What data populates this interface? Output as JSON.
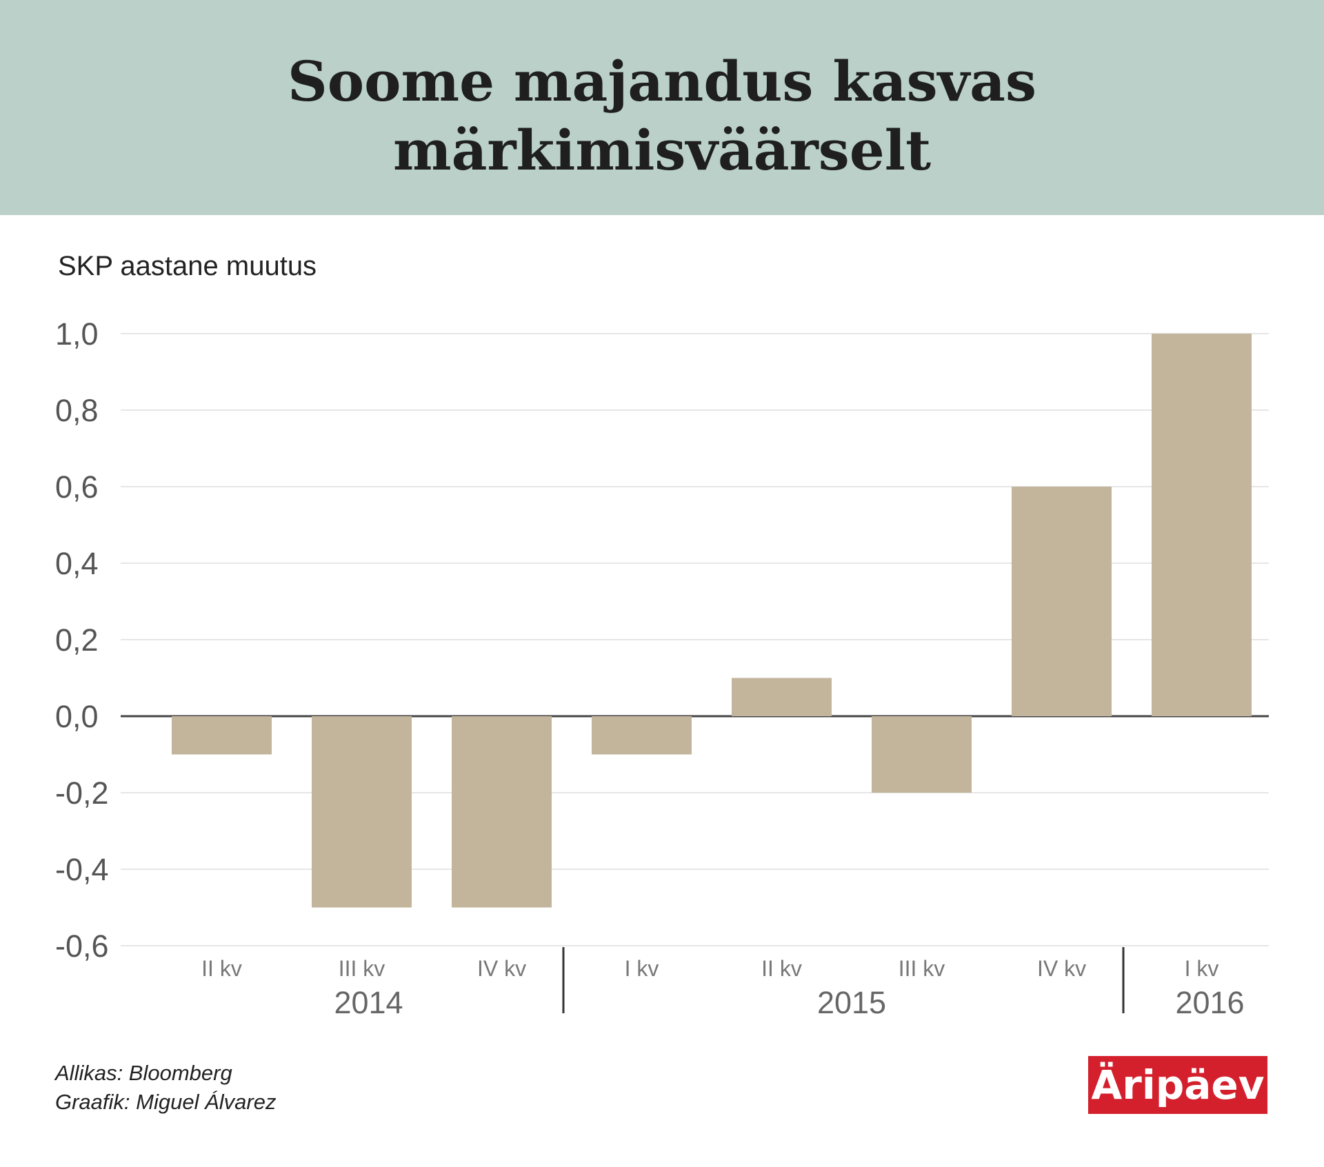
{
  "title_lines": [
    "Soome majandus kasvas",
    "märkimisväärselt"
  ],
  "footer": {
    "source": "Allikas: Bloomberg",
    "author": "Graafik: Miguel Álvarez"
  },
  "logo": {
    "text": "Äripäev",
    "color": "#d4202c"
  },
  "chart_data": {
    "type": "bar",
    "title": "Soome majandus kasvas märkimisväärselt",
    "ylabel": "SKP aastane muutus",
    "xlabel": "",
    "categories": [
      "II kv",
      "III kv",
      "IV kv",
      "I kv",
      "II kv",
      "III kv",
      "IV kv",
      "I kv"
    ],
    "year_groups": [
      {
        "year": "2014",
        "count": 3
      },
      {
        "year": "2015",
        "count": 4
      },
      {
        "year": "2016",
        "count": 1
      }
    ],
    "values": [
      -0.1,
      -0.5,
      -0.5,
      -0.1,
      0.1,
      -0.2,
      0.6,
      1.0
    ],
    "yticks": [
      "1,0",
      "0,8",
      "0,6",
      "0,4",
      "0,2",
      "0,0",
      "-0,2",
      "-0,4",
      "-0,6"
    ],
    "ylim": [
      -0.6,
      1.0
    ],
    "bar_color": "#c2b59c",
    "grid": true,
    "legend": "none"
  }
}
